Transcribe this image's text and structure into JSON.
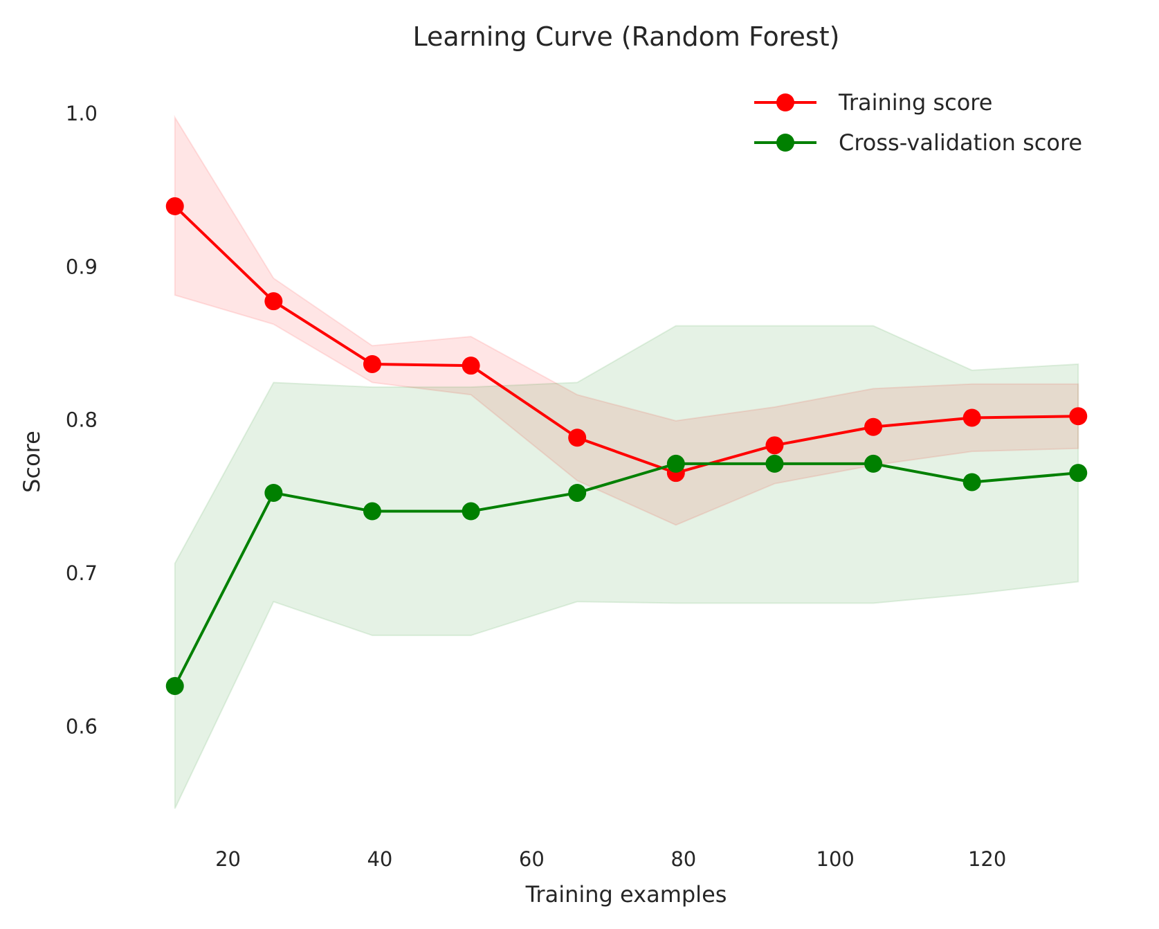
{
  "chart_data": {
    "type": "line",
    "title": "Learning Curve (Random Forest)",
    "xlabel": "Training examples",
    "ylabel": "Score",
    "xlim": [
      7.1,
      137.9
    ],
    "ylim": [
      0.5325,
      1.0225
    ],
    "xticks": [
      20,
      40,
      60,
      80,
      100,
      120
    ],
    "xtick_labels": [
      "20",
      "40",
      "60",
      "80",
      "100",
      "120"
    ],
    "yticks": [
      0.6,
      0.7,
      0.8,
      0.9,
      1.0
    ],
    "ytick_labels": [
      "0.6",
      "0.7",
      "0.8",
      "0.9",
      "1.0"
    ],
    "grid": false,
    "legend_position": "top-right",
    "x": [
      13,
      26,
      39,
      52,
      66,
      79,
      92,
      105,
      118,
      132
    ],
    "series": [
      {
        "name": "Training score",
        "color": "#ff0000",
        "fill_color": "#ff0000",
        "values": [
          0.939,
          0.877,
          0.836,
          0.835,
          0.788,
          0.765,
          0.783,
          0.795,
          0.801,
          0.802
        ],
        "band_lower": [
          0.881,
          0.862,
          0.824,
          0.816,
          0.76,
          0.731,
          0.758,
          0.77,
          0.779,
          0.781
        ],
        "band_upper": [
          0.997,
          0.892,
          0.848,
          0.854,
          0.816,
          0.799,
          0.808,
          0.82,
          0.823,
          0.823
        ]
      },
      {
        "name": "Cross-validation score",
        "color": "#008000",
        "fill_color": "#008000",
        "values": [
          0.626,
          0.752,
          0.74,
          0.74,
          0.752,
          0.771,
          0.771,
          0.771,
          0.759,
          0.765
        ],
        "band_lower": [
          0.546,
          0.681,
          0.659,
          0.659,
          0.681,
          0.68,
          0.68,
          0.68,
          0.686,
          0.694
        ],
        "band_upper": [
          0.706,
          0.824,
          0.821,
          0.821,
          0.824,
          0.861,
          0.861,
          0.861,
          0.832,
          0.836
        ]
      }
    ]
  }
}
